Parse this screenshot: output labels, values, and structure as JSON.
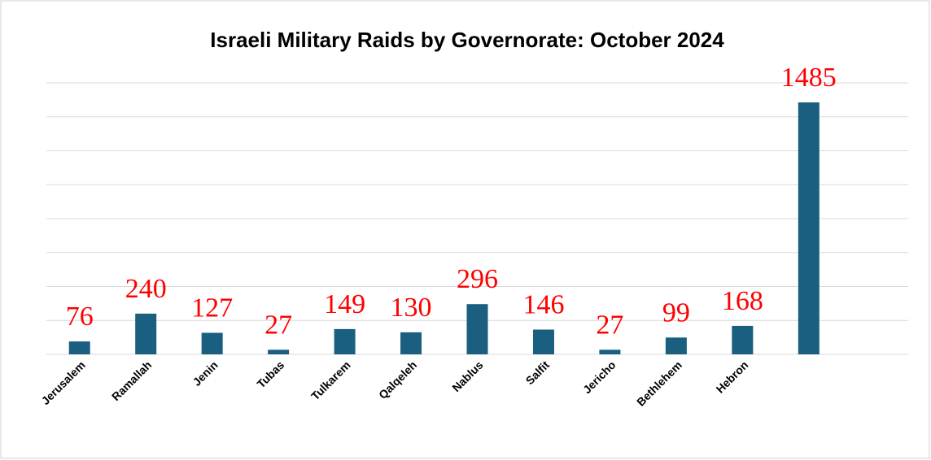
{
  "chart_data": {
    "type": "bar",
    "title": "Israeli Military Raids by Governorate:  October 2024",
    "categories": [
      "Jerusalem",
      "Ramallah",
      "Jenin",
      "Tubas",
      "Tulkarem",
      "Qalqeleh",
      "Nablus",
      "Salfit",
      "Jericho",
      "Bethlehem",
      "Hebron",
      null
    ],
    "values": [
      76,
      240,
      127,
      27,
      149,
      130,
      296,
      146,
      27,
      99,
      168,
      1485
    ],
    "color": "#1a5f80",
    "value_label_color": "#ff0000",
    "ylim": [
      0,
      1600
    ],
    "yticks": [
      0,
      200,
      400,
      600,
      800,
      1000,
      1200,
      1400,
      1600
    ],
    "grid": true
  }
}
